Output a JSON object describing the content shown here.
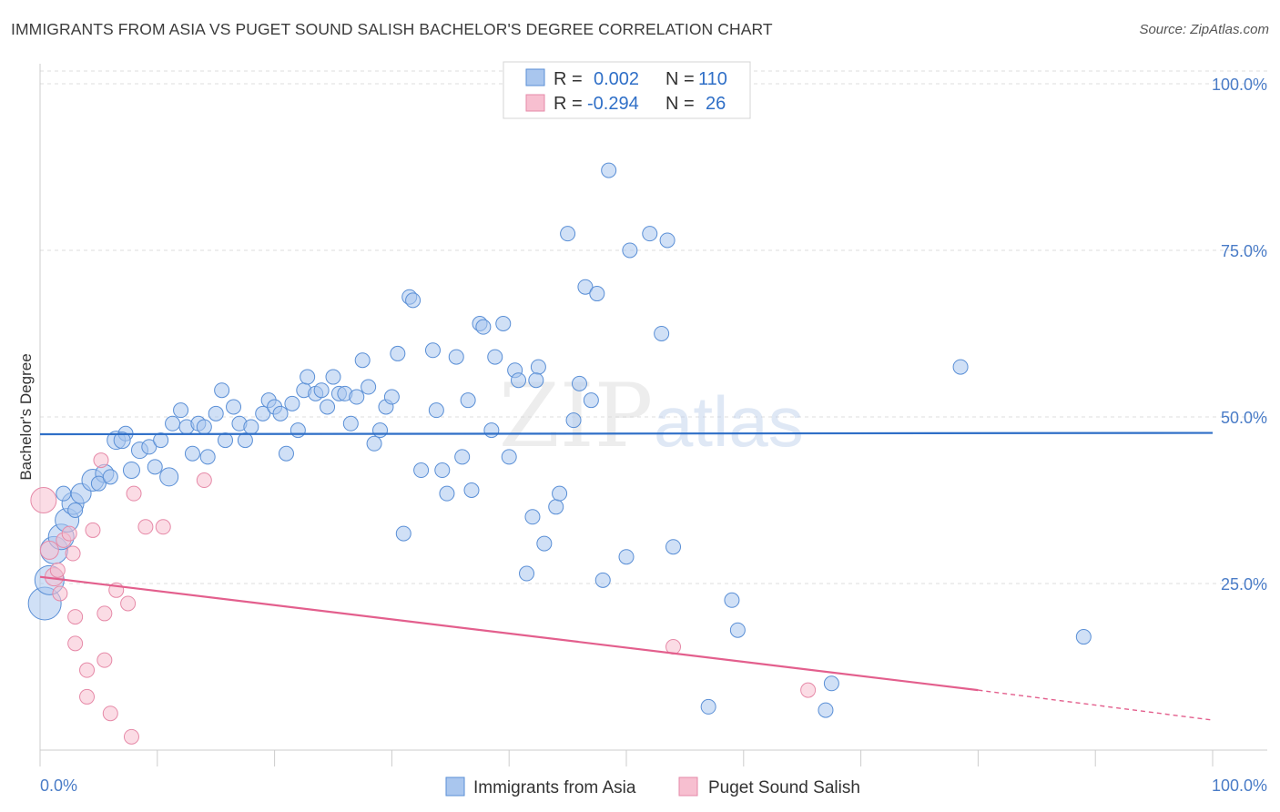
{
  "title": "IMMIGRANTS FROM ASIA VS PUGET SOUND SALISH BACHELOR'S DEGREE CORRELATION CHART",
  "source": "Source: ZipAtlas.com",
  "watermark": {
    "zip": "ZIP",
    "atlas": "atlas"
  },
  "colors": {
    "blue_fill": "#a9c6ee",
    "blue_stroke": "#5a8fd6",
    "blue_line": "#2f6fc7",
    "pink_fill": "#f7bfd0",
    "pink_stroke": "#e68aa8",
    "pink_line": "#e35f8d",
    "grid": "#dddddd",
    "tick_text": "#4a7cc7"
  },
  "legend": {
    "rows": [
      {
        "r_label": "R = ",
        "r_value": "0.002",
        "n_label": "N = ",
        "n_value": "110"
      },
      {
        "r_label": "R = ",
        "r_value": "-0.294",
        "n_label": "N = ",
        "n_value": "26"
      }
    ]
  },
  "chart_data": {
    "type": "scatter",
    "title": "IMMIGRANTS FROM ASIA VS PUGET SOUND SALISH BACHELOR'S DEGREE CORRELATION CHART",
    "xlabel": "",
    "ylabel": "Bachelor's Degree",
    "xlim": [
      0,
      100
    ],
    "ylim": [
      0,
      103
    ],
    "x_ticks": [
      {
        "value": 0,
        "label": "0.0%"
      },
      {
        "value": 100,
        "label": "100.0%"
      }
    ],
    "y_ticks": [
      {
        "value": 25,
        "label": "25.0%"
      },
      {
        "value": 50,
        "label": "50.0%"
      },
      {
        "value": 75,
        "label": "75.0%"
      },
      {
        "value": 100,
        "label": "100.0%"
      }
    ],
    "grid": true,
    "legend_position": "top-center",
    "series": [
      {
        "name": "Immigrants from Asia",
        "color": "blue",
        "r": 0.002,
        "n": 110,
        "trend": {
          "x0": 0,
          "y0": 47.4,
          "x1": 100,
          "y1": 47.6
        },
        "points": [
          [
            0.4,
            22.0,
            18
          ],
          [
            0.8,
            25.5,
            16
          ],
          [
            1.2,
            30.0,
            15
          ],
          [
            1.8,
            32.0,
            14
          ],
          [
            2.3,
            34.5,
            13
          ],
          [
            2.8,
            37.0,
            12
          ],
          [
            3.5,
            38.5,
            11
          ],
          [
            4.5,
            40.5,
            12
          ],
          [
            5.5,
            41.5,
            10
          ],
          [
            6.5,
            46.5,
            10
          ],
          [
            7.3,
            47.5,
            8
          ],
          [
            7.0,
            46.5,
            9
          ],
          [
            7.8,
            42.0,
            9
          ],
          [
            8.5,
            45.0,
            9
          ],
          [
            9.3,
            45.5,
            8
          ],
          [
            10.3,
            46.5,
            8
          ],
          [
            9.8,
            42.5,
            8
          ],
          [
            11.0,
            41.0,
            10
          ],
          [
            11.3,
            49.0,
            8
          ],
          [
            12.0,
            51.0,
            8
          ],
          [
            12.5,
            48.5,
            8
          ],
          [
            13.0,
            44.5,
            8
          ],
          [
            13.5,
            49.0,
            8
          ],
          [
            14.3,
            44.0,
            8
          ],
          [
            14.0,
            48.5,
            8
          ],
          [
            15.0,
            50.5,
            8
          ],
          [
            15.5,
            54.0,
            8
          ],
          [
            15.8,
            46.5,
            8
          ],
          [
            16.5,
            51.5,
            8
          ],
          [
            17.0,
            49.0,
            8
          ],
          [
            17.5,
            46.5,
            8
          ],
          [
            18.0,
            48.5,
            8
          ],
          [
            19.0,
            50.5,
            8
          ],
          [
            19.5,
            52.5,
            8
          ],
          [
            20.0,
            51.5,
            8
          ],
          [
            20.5,
            50.5,
            8
          ],
          [
            21.0,
            44.5,
            8
          ],
          [
            21.5,
            52.0,
            8
          ],
          [
            22.0,
            48.0,
            8
          ],
          [
            22.5,
            54.0,
            8
          ],
          [
            22.8,
            56.0,
            8
          ],
          [
            23.5,
            53.5,
            8
          ],
          [
            24.0,
            54.0,
            8
          ],
          [
            24.5,
            51.5,
            8
          ],
          [
            25.0,
            56.0,
            8
          ],
          [
            25.5,
            53.5,
            8
          ],
          [
            26.0,
            53.5,
            8
          ],
          [
            26.5,
            49.0,
            8
          ],
          [
            27.0,
            53.0,
            8
          ],
          [
            27.5,
            58.5,
            8
          ],
          [
            28.0,
            54.5,
            8
          ],
          [
            28.5,
            46.0,
            8
          ],
          [
            29.0,
            48.0,
            8
          ],
          [
            29.5,
            51.5,
            8
          ],
          [
            30.0,
            53.0,
            8
          ],
          [
            30.5,
            59.5,
            8
          ],
          [
            31.0,
            32.5,
            8
          ],
          [
            31.5,
            68.0,
            8
          ],
          [
            31.8,
            67.5,
            8
          ],
          [
            32.5,
            42.0,
            8
          ],
          [
            33.5,
            60.0,
            8
          ],
          [
            33.8,
            51.0,
            8
          ],
          [
            34.3,
            42.0,
            8
          ],
          [
            34.7,
            38.5,
            8
          ],
          [
            35.5,
            59.0,
            8
          ],
          [
            36.0,
            44.0,
            8
          ],
          [
            36.5,
            52.5,
            8
          ],
          [
            36.8,
            39.0,
            8
          ],
          [
            37.5,
            64.0,
            8
          ],
          [
            37.8,
            63.5,
            8
          ],
          [
            38.5,
            48.0,
            8
          ],
          [
            38.8,
            59.0,
            8
          ],
          [
            39.5,
            64.0,
            8
          ],
          [
            40.0,
            44.0,
            8
          ],
          [
            40.5,
            57.0,
            8
          ],
          [
            40.8,
            55.5,
            8
          ],
          [
            41.5,
            26.5,
            8
          ],
          [
            42.0,
            35.0,
            8
          ],
          [
            42.5,
            57.5,
            8
          ],
          [
            42.3,
            55.5,
            8
          ],
          [
            43.0,
            31.0,
            8
          ],
          [
            44.0,
            36.5,
            8
          ],
          [
            44.3,
            38.5,
            8
          ],
          [
            45.0,
            77.5,
            8
          ],
          [
            45.5,
            49.5,
            8
          ],
          [
            46.0,
            55.0,
            8
          ],
          [
            46.5,
            69.5,
            8
          ],
          [
            47.0,
            52.5,
            8
          ],
          [
            47.5,
            68.5,
            8
          ],
          [
            48.0,
            25.5,
            8
          ],
          [
            48.5,
            87.0,
            8
          ],
          [
            50.0,
            29.0,
            8
          ],
          [
            50.3,
            75.0,
            8
          ],
          [
            52.0,
            77.5,
            8
          ],
          [
            53.0,
            62.5,
            8
          ],
          [
            53.5,
            76.5,
            8
          ],
          [
            54.0,
            30.5,
            8
          ],
          [
            57.0,
            6.5,
            8
          ],
          [
            59.0,
            22.5,
            8
          ],
          [
            59.5,
            18.0,
            8
          ],
          [
            67.0,
            6.0,
            8
          ],
          [
            67.5,
            10.0,
            8
          ],
          [
            78.5,
            57.5,
            8
          ],
          [
            89.0,
            17.0,
            8
          ],
          [
            2.0,
            38.5,
            8
          ],
          [
            3.0,
            36.0,
            8
          ],
          [
            5.0,
            40.0,
            8
          ],
          [
            6.0,
            41.0,
            8
          ]
        ]
      },
      {
        "name": "Puget Sound Salish",
        "color": "pink",
        "r": -0.294,
        "n": 26,
        "trend": {
          "x0": 0,
          "y0": 26.0,
          "x1": 80,
          "y1": 9.0,
          "dash_to_x": 100,
          "dash_to_y": 4.5
        },
        "points": [
          [
            0.3,
            37.5,
            14
          ],
          [
            0.8,
            30.0,
            10
          ],
          [
            1.2,
            26.0,
            10
          ],
          [
            1.5,
            27.0,
            8
          ],
          [
            1.7,
            23.5,
            8
          ],
          [
            2.0,
            31.5,
            8
          ],
          [
            2.5,
            32.5,
            8
          ],
          [
            3.0,
            20.0,
            8
          ],
          [
            3.0,
            16.0,
            8
          ],
          [
            4.0,
            12.0,
            8
          ],
          [
            4.0,
            8.0,
            8
          ],
          [
            4.5,
            33.0,
            8
          ],
          [
            5.2,
            43.5,
            8
          ],
          [
            5.5,
            20.5,
            8
          ],
          [
            5.5,
            13.5,
            8
          ],
          [
            6.0,
            5.5,
            8
          ],
          [
            6.5,
            24.0,
            8
          ],
          [
            7.5,
            22.0,
            8
          ],
          [
            7.8,
            2.0,
            8
          ],
          [
            8.0,
            38.5,
            8
          ],
          [
            9.0,
            33.5,
            8
          ],
          [
            10.5,
            33.5,
            8
          ],
          [
            14.0,
            40.5,
            8
          ],
          [
            54.0,
            15.5,
            8
          ],
          [
            65.5,
            9.0,
            8
          ],
          [
            2.8,
            29.5,
            8
          ]
        ]
      }
    ]
  }
}
